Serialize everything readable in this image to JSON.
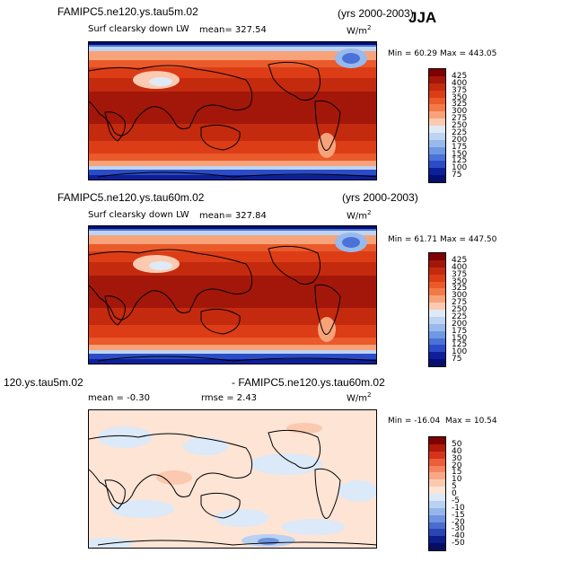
{
  "season": "JJA",
  "panels": [
    {
      "title": "FAMIPC5.ne120.ys.tau5m.02",
      "years": "(yrs 2000-2003)",
      "variable": "Surf clearsky down LW",
      "mean": "mean= 327.54",
      "units": "W/m",
      "units_exp": "2",
      "min": "Min =  60.29",
      "max": "Max = 443.05",
      "colorbar": [
        "425",
        "400",
        "375",
        "350",
        "325",
        "300",
        "275",
        "250",
        "225",
        "200",
        "175",
        "150",
        "125",
        "100",
        "75"
      ]
    },
    {
      "title": "FAMIPC5.ne120.ys.tau60m.02",
      "years": "(yrs 2000-2003)",
      "variable": "Surf clearsky down LW",
      "mean": "mean= 327.84",
      "units": "W/m",
      "units_exp": "2",
      "min": "Min =  61.71",
      "max": "Max = 447.50",
      "colorbar": [
        "425",
        "400",
        "375",
        "350",
        "325",
        "300",
        "275",
        "250",
        "225",
        "200",
        "175",
        "150",
        "125",
        "100",
        "75"
      ]
    },
    {
      "title_left": "120.ys.tau5m.02",
      "title_right": "- FAMIPC5.ne120.ys.tau60m.02",
      "mean": "mean =  -0.30",
      "rmse": "rmse =   2.43",
      "units": "W/m",
      "units_exp": "2",
      "min": "Min = -16.04",
      "max": "Max =  10.54",
      "colorbar": [
        "50",
        "40",
        "30",
        "20",
        "15",
        "10",
        "5",
        "0",
        "-5",
        "-10",
        "-15",
        "-20",
        "-30",
        "-40",
        "-50"
      ]
    }
  ],
  "colors": {
    "abs_scale": [
      "#7f0000",
      "#a3170a",
      "#c42a0d",
      "#dc3d16",
      "#ea5a2a",
      "#f27a48",
      "#f8a27a",
      "#fccab0",
      "#dfeaf7",
      "#bdd4f2",
      "#98b9ec",
      "#6f98e3",
      "#4a72d8",
      "#2b4cc6",
      "#0d1f99",
      "#050f70"
    ],
    "diff_scale": [
      "#7f0000",
      "#b01a0b",
      "#d6331a",
      "#ea5e3a",
      "#f4845e",
      "#f8a886",
      "#fbc9b0",
      "#fde4d5",
      "#dbe9f8",
      "#b9d1f2",
      "#96b6ea",
      "#6f93de",
      "#4a6ccd",
      "#2a45b5",
      "#0c1d8c",
      "#050f60"
    ]
  }
}
